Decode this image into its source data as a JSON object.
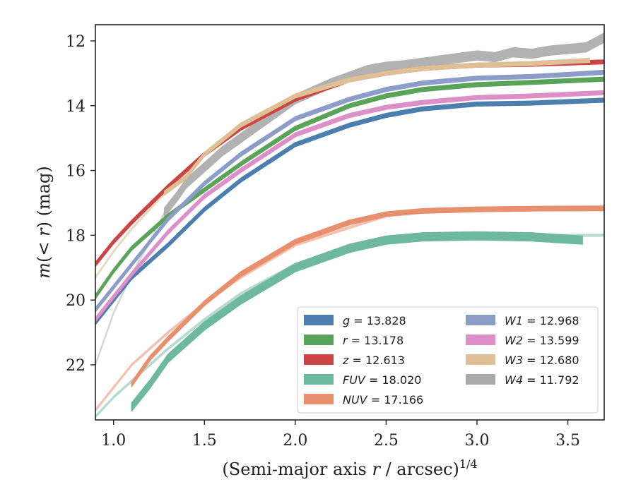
{
  "chart_data": {
    "type": "line",
    "xlabel": "(Semi-major axis r / arcsec)^1/4",
    "ylabel": "m(< r) (mag)",
    "xlim": [
      0.9,
      3.7
    ],
    "ylim": [
      23.7,
      11.5
    ],
    "y_inverted": true,
    "xticks": [
      1.0,
      1.5,
      2.0,
      2.5,
      3.0,
      3.5
    ],
    "yticks": [
      12,
      14,
      16,
      18,
      20,
      22
    ],
    "grid": false,
    "legend_position": "lower-right",
    "legend_ncol": 2,
    "series": [
      {
        "name": "g",
        "value": "13.828",
        "color": "#4c7fae",
        "band": 0.12,
        "opacity": 1.0,
        "x": [
          0.9,
          1.0,
          1.1,
          1.2,
          1.3,
          1.5,
          1.7,
          2.0,
          2.3,
          2.5,
          2.7,
          3.0,
          3.3,
          3.7
        ],
        "y": [
          20.7,
          20.0,
          19.3,
          18.8,
          18.3,
          17.2,
          16.3,
          15.2,
          14.6,
          14.3,
          14.1,
          13.95,
          13.92,
          13.83
        ]
      },
      {
        "name": "r",
        "value": "13.178",
        "color": "#5aa45a",
        "band": 0.12,
        "opacity": 1.0,
        "x": [
          0.9,
          1.0,
          1.1,
          1.3,
          1.5,
          1.7,
          2.0,
          2.3,
          2.5,
          2.7,
          3.0,
          3.3,
          3.7
        ],
        "y": [
          19.9,
          19.1,
          18.4,
          17.4,
          16.6,
          15.8,
          14.7,
          14.0,
          13.7,
          13.5,
          13.35,
          13.28,
          13.18
        ]
      },
      {
        "name": "z",
        "value": "12.613",
        "color": "#cc4444",
        "band": 0.12,
        "opacity": 1.0,
        "x": [
          0.9,
          1.0,
          1.1,
          1.3,
          1.5,
          1.7,
          2.0,
          2.3,
          2.5,
          2.7,
          3.0,
          3.3,
          3.7
        ],
        "y": [
          18.9,
          18.2,
          17.6,
          16.5,
          15.5,
          14.7,
          13.8,
          13.2,
          13.0,
          12.85,
          12.75,
          12.72,
          12.65
        ]
      },
      {
        "name": "FUV",
        "value": "18.020",
        "color": "#6fb8a0",
        "band": 0.25,
        "opacity": 1.0,
        "x": [
          1.1,
          1.2,
          1.3,
          1.5,
          1.7,
          2.0,
          2.3,
          2.5,
          2.7,
          3.0,
          3.3,
          3.58
        ],
        "y": [
          23.3,
          22.6,
          21.8,
          20.8,
          20.0,
          19.0,
          18.4,
          18.15,
          18.05,
          18.02,
          18.05,
          18.15
        ]
      },
      {
        "name": "FUV-ext",
        "value": "",
        "color": "#6fb8a0",
        "band": 0.06,
        "opacity": 0.5,
        "x": [
          0.9,
          1.0,
          1.1,
          1.3,
          1.5,
          1.7,
          2.0,
          2.5,
          3.0,
          3.7
        ],
        "y": [
          23.6,
          23.0,
          22.5,
          21.5,
          20.6,
          19.8,
          18.9,
          18.15,
          18.02,
          18.0
        ]
      },
      {
        "name": "NUV",
        "value": "17.166",
        "color": "#e8906e",
        "band": 0.14,
        "opacity": 1.0,
        "x": [
          1.1,
          1.2,
          1.3,
          1.5,
          1.7,
          2.0,
          2.3,
          2.5,
          2.7,
          3.0,
          3.3,
          3.7
        ],
        "y": [
          22.6,
          21.8,
          21.2,
          20.1,
          19.2,
          18.2,
          17.6,
          17.35,
          17.25,
          17.2,
          17.18,
          17.17
        ]
      },
      {
        "name": "NUV-ext",
        "value": "",
        "color": "#e8906e",
        "band": 0.06,
        "opacity": 0.55,
        "x": [
          0.9,
          1.0,
          1.1,
          1.3,
          1.5,
          1.7,
          2.0,
          2.5
        ],
        "y": [
          23.4,
          22.7,
          22.0,
          21.0,
          20.1,
          19.3,
          18.3,
          17.4
        ]
      },
      {
        "name": "W1",
        "value": "12.968",
        "color": "#8b9dc8",
        "band": 0.12,
        "opacity": 1.0,
        "x": [
          0.9,
          1.0,
          1.1,
          1.3,
          1.5,
          1.7,
          2.0,
          2.3,
          2.5,
          2.7,
          3.0,
          3.3,
          3.7
        ],
        "y": [
          20.3,
          19.6,
          18.9,
          17.5,
          16.4,
          15.5,
          14.4,
          13.8,
          13.5,
          13.3,
          13.15,
          13.1,
          12.97
        ]
      },
      {
        "name": "W2",
        "value": "13.599",
        "color": "#dd8fc8",
        "band": 0.12,
        "opacity": 1.0,
        "x": [
          0.9,
          1.0,
          1.1,
          1.3,
          1.5,
          1.7,
          2.0,
          2.3,
          2.5,
          2.7,
          3.0,
          3.3,
          3.7
        ],
        "y": [
          20.6,
          19.9,
          19.2,
          17.9,
          16.8,
          16.0,
          14.9,
          14.3,
          14.05,
          13.9,
          13.75,
          13.7,
          13.6
        ]
      },
      {
        "name": "W3",
        "value": "12.680",
        "color": "#dfbf95",
        "band": 0.12,
        "opacity": 1.0,
        "x": [
          1.28,
          1.4,
          1.5,
          1.7,
          2.0,
          2.3,
          2.5,
          2.7,
          3.0,
          3.3,
          3.62
        ],
        "y": [
          16.7,
          16.2,
          15.5,
          14.6,
          13.7,
          13.2,
          13.0,
          12.85,
          12.75,
          12.7,
          12.6
        ]
      },
      {
        "name": "W3-ext",
        "value": "",
        "color": "#dfbf95",
        "band": 0.05,
        "opacity": 0.6,
        "x": [
          0.9,
          1.0,
          1.1,
          1.2,
          1.28
        ],
        "y": [
          19.3,
          18.5,
          17.8,
          17.2,
          16.7
        ]
      },
      {
        "name": "W4",
        "value": "11.792",
        "color": "#aaaaaa",
        "band": 0.28,
        "opacity": 0.9,
        "x": [
          1.28,
          1.35,
          1.4,
          1.5,
          1.6,
          1.7,
          1.85,
          2.0,
          2.2,
          2.4,
          2.5,
          2.6,
          2.8,
          3.0,
          3.1,
          3.2,
          3.3,
          3.4,
          3.5,
          3.6,
          3.7
        ],
        "y": [
          17.3,
          16.8,
          16.4,
          15.9,
          15.4,
          15.0,
          14.4,
          13.8,
          13.3,
          12.9,
          12.8,
          12.75,
          12.6,
          12.45,
          12.5,
          12.35,
          12.4,
          12.3,
          12.25,
          12.2,
          11.9
        ]
      },
      {
        "name": "W4-ext",
        "value": "",
        "color": "#aaaaaa",
        "band": 0.05,
        "opacity": 0.5,
        "x": [
          0.9,
          1.0,
          1.1,
          1.2,
          1.28
        ],
        "y": [
          22.0,
          20.4,
          19.2,
          18.2,
          17.3
        ]
      }
    ],
    "legend": [
      {
        "label": "g = 13.828",
        "italic": "g",
        "rest": " = 13.828",
        "color": "#4c7fae"
      },
      {
        "label": "r = 13.178",
        "italic": "r",
        "rest": " = 13.178",
        "color": "#5aa45a"
      },
      {
        "label": "z = 12.613",
        "italic": "z",
        "rest": " = 12.613",
        "color": "#cc4444"
      },
      {
        "label": "FUV = 18.020",
        "italic": "FUV",
        "rest": " = 18.020",
        "color": "#6fb8a0"
      },
      {
        "label": "NUV = 17.166",
        "italic": "NUV",
        "rest": " = 17.166",
        "color": "#e8906e"
      },
      {
        "label": "W1 = 12.968",
        "italic": "W1",
        "rest": " = 12.968",
        "color": "#8b9dc8"
      },
      {
        "label": "W2 = 13.599",
        "italic": "W2",
        "rest": " = 13.599",
        "color": "#dd8fc8"
      },
      {
        "label": "W3 = 12.680",
        "italic": "W3",
        "rest": " = 12.680",
        "color": "#dfbf95"
      },
      {
        "label": "W4 = 11.792",
        "italic": "W4",
        "rest": " = 11.792",
        "color": "#aaaaaa"
      }
    ]
  }
}
